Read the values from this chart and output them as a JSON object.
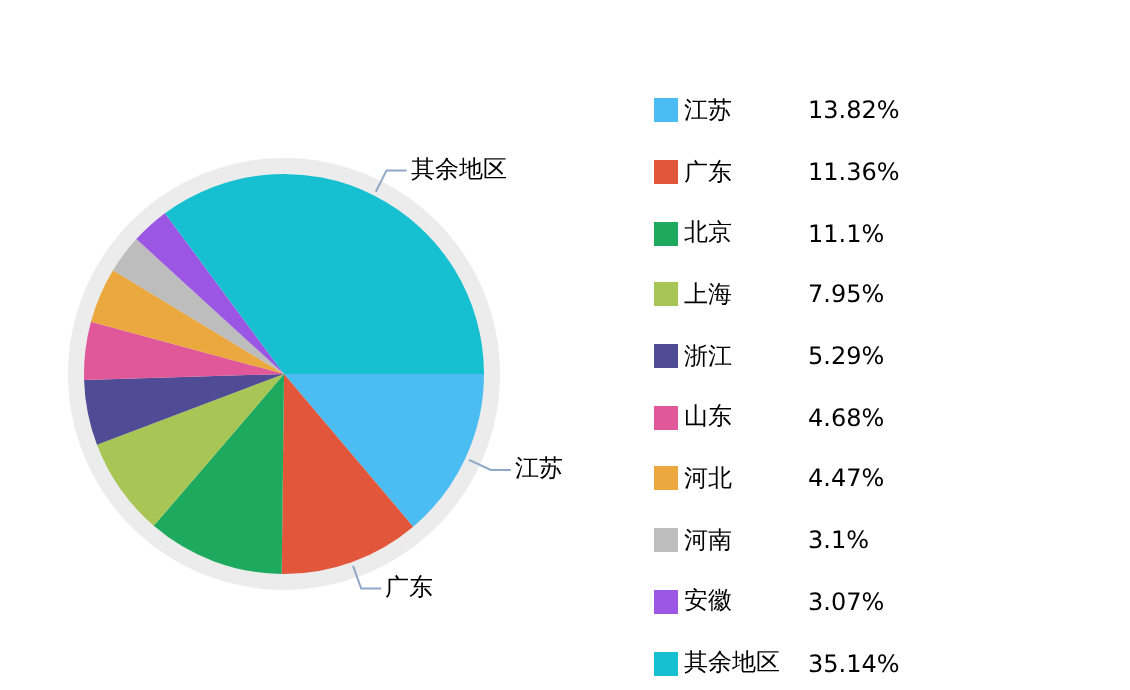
{
  "chart_data": {
    "type": "pie",
    "categories": [
      "江苏",
      "广东",
      "北京",
      "上海",
      "浙江",
      "山东",
      "河北",
      "河南",
      "安徽",
      "其余地区"
    ],
    "values": [
      13.82,
      11.36,
      11.1,
      7.95,
      5.29,
      4.68,
      4.47,
      3.1,
      3.07,
      35.14
    ],
    "value_labels": [
      "13.82%",
      "11.36%",
      "11.1%",
      "7.95%",
      "5.29%",
      "4.68%",
      "4.47%",
      "3.1%",
      "3.07%",
      "35.14%"
    ],
    "colors": [
      "#4bbdf2",
      "#e2573b",
      "#1da95e",
      "#a8c656",
      "#4f4b94",
      "#e0579a",
      "#eaa83f",
      "#bdbdbd",
      "#9b57e3",
      "#17c0d1"
    ],
    "legend": "right",
    "annotations": [
      {
        "text": "江苏",
        "x": "江苏"
      },
      {
        "text": "广东",
        "x": "广东"
      },
      {
        "text": "其余地区",
        "x": "其余地区"
      }
    ]
  }
}
